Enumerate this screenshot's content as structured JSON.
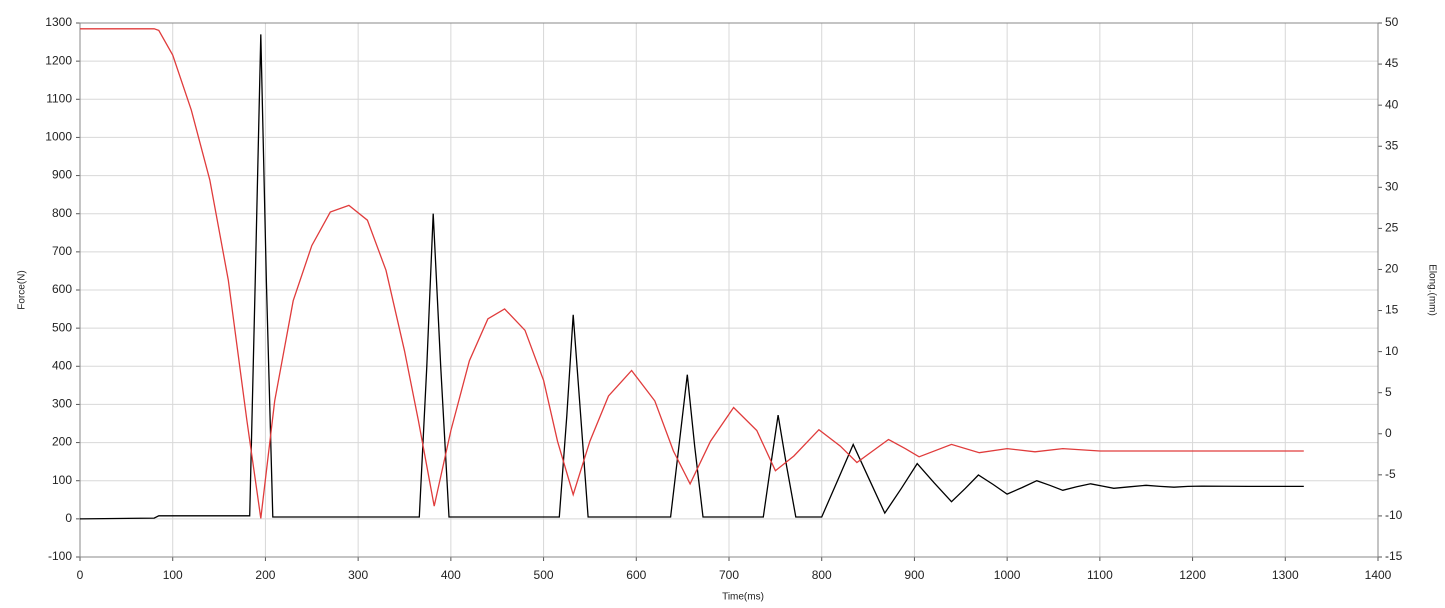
{
  "chart_data": {
    "type": "line",
    "xlabel": "Time(ms)",
    "ylabel": "Force(N)",
    "y2label": "Elong.(mm)",
    "xlim": [
      0,
      1400
    ],
    "xticks": [
      0,
      100,
      200,
      300,
      400,
      500,
      600,
      700,
      800,
      900,
      1000,
      1100,
      1200,
      1300,
      1400
    ],
    "ylim": [
      -100,
      1300
    ],
    "yticks": [
      -100,
      0,
      100,
      200,
      300,
      400,
      500,
      600,
      700,
      800,
      900,
      1000,
      1100,
      1200,
      1300
    ],
    "y2lim": [
      -15,
      50
    ],
    "y2ticks": [
      -15,
      -10,
      -5,
      0,
      5,
      10,
      15,
      20,
      25,
      30,
      35,
      40,
      45,
      50
    ],
    "grid": true,
    "series": [
      {
        "name": "Force",
        "color": "#000000",
        "x": [
          0,
          80,
          85,
          183,
          189,
          195,
          201,
          208,
          366,
          374,
          381,
          389,
          398,
          517,
          525,
          532,
          540,
          548,
          637,
          646,
          655,
          663,
          672,
          737,
          745,
          753,
          762,
          772,
          800,
          817,
          834,
          851,
          868,
          886,
          903,
          921,
          940,
          955,
          969,
          985,
          1000,
          1016,
          1032,
          1046,
          1060,
          1075,
          1090,
          1103,
          1115,
          1132,
          1150,
          1165,
          1180,
          1195,
          1210,
          1260,
          1320
        ],
        "values": [
          0,
          2,
          8,
          8,
          620,
          1270,
          620,
          5,
          5,
          400,
          800,
          400,
          5,
          5,
          270,
          535,
          270,
          5,
          5,
          190,
          378,
          190,
          5,
          5,
          140,
          272,
          140,
          5,
          5,
          100,
          195,
          105,
          15,
          80,
          145,
          95,
          45,
          80,
          115,
          90,
          65,
          82,
          100,
          88,
          75,
          84,
          92,
          86,
          80,
          84,
          88,
          85,
          83,
          85,
          86,
          85,
          85
        ]
      },
      {
        "name": "Elong",
        "color": "#e03c3c",
        "axis": "y2",
        "x": [
          0,
          80,
          85,
          100,
          120,
          140,
          160,
          180,
          195,
          210,
          230,
          250,
          270,
          290,
          310,
          330,
          350,
          365,
          382,
          400,
          420,
          440,
          458,
          480,
          500,
          515,
          532,
          550,
          570,
          595,
          620,
          640,
          658,
          680,
          705,
          730,
          750,
          770,
          797,
          820,
          838,
          855,
          872,
          890,
          905,
          940,
          970,
          1000,
          1030,
          1060,
          1100,
          1320
        ],
        "values": [
          49.3,
          49.3,
          49.1,
          46.1,
          39.4,
          30.9,
          18.7,
          1.6,
          -10.3,
          4,
          16.2,
          22.9,
          27,
          27.8,
          26,
          19.9,
          10.1,
          1.6,
          -8.8,
          0.4,
          8.9,
          14,
          15.2,
          12.6,
          6.5,
          -0.9,
          -7.4,
          -0.9,
          4.6,
          7.7,
          4,
          -2.1,
          -6.1,
          -0.9,
          3.2,
          0.4,
          -4.5,
          -2.7,
          0.5,
          -1.5,
          -3.5,
          -2.1,
          -0.7,
          -1.8,
          -2.8,
          -1.3,
          -2.3,
          -1.8,
          -2.2,
          -1.8,
          -2.1,
          -2.1
        ]
      }
    ]
  }
}
